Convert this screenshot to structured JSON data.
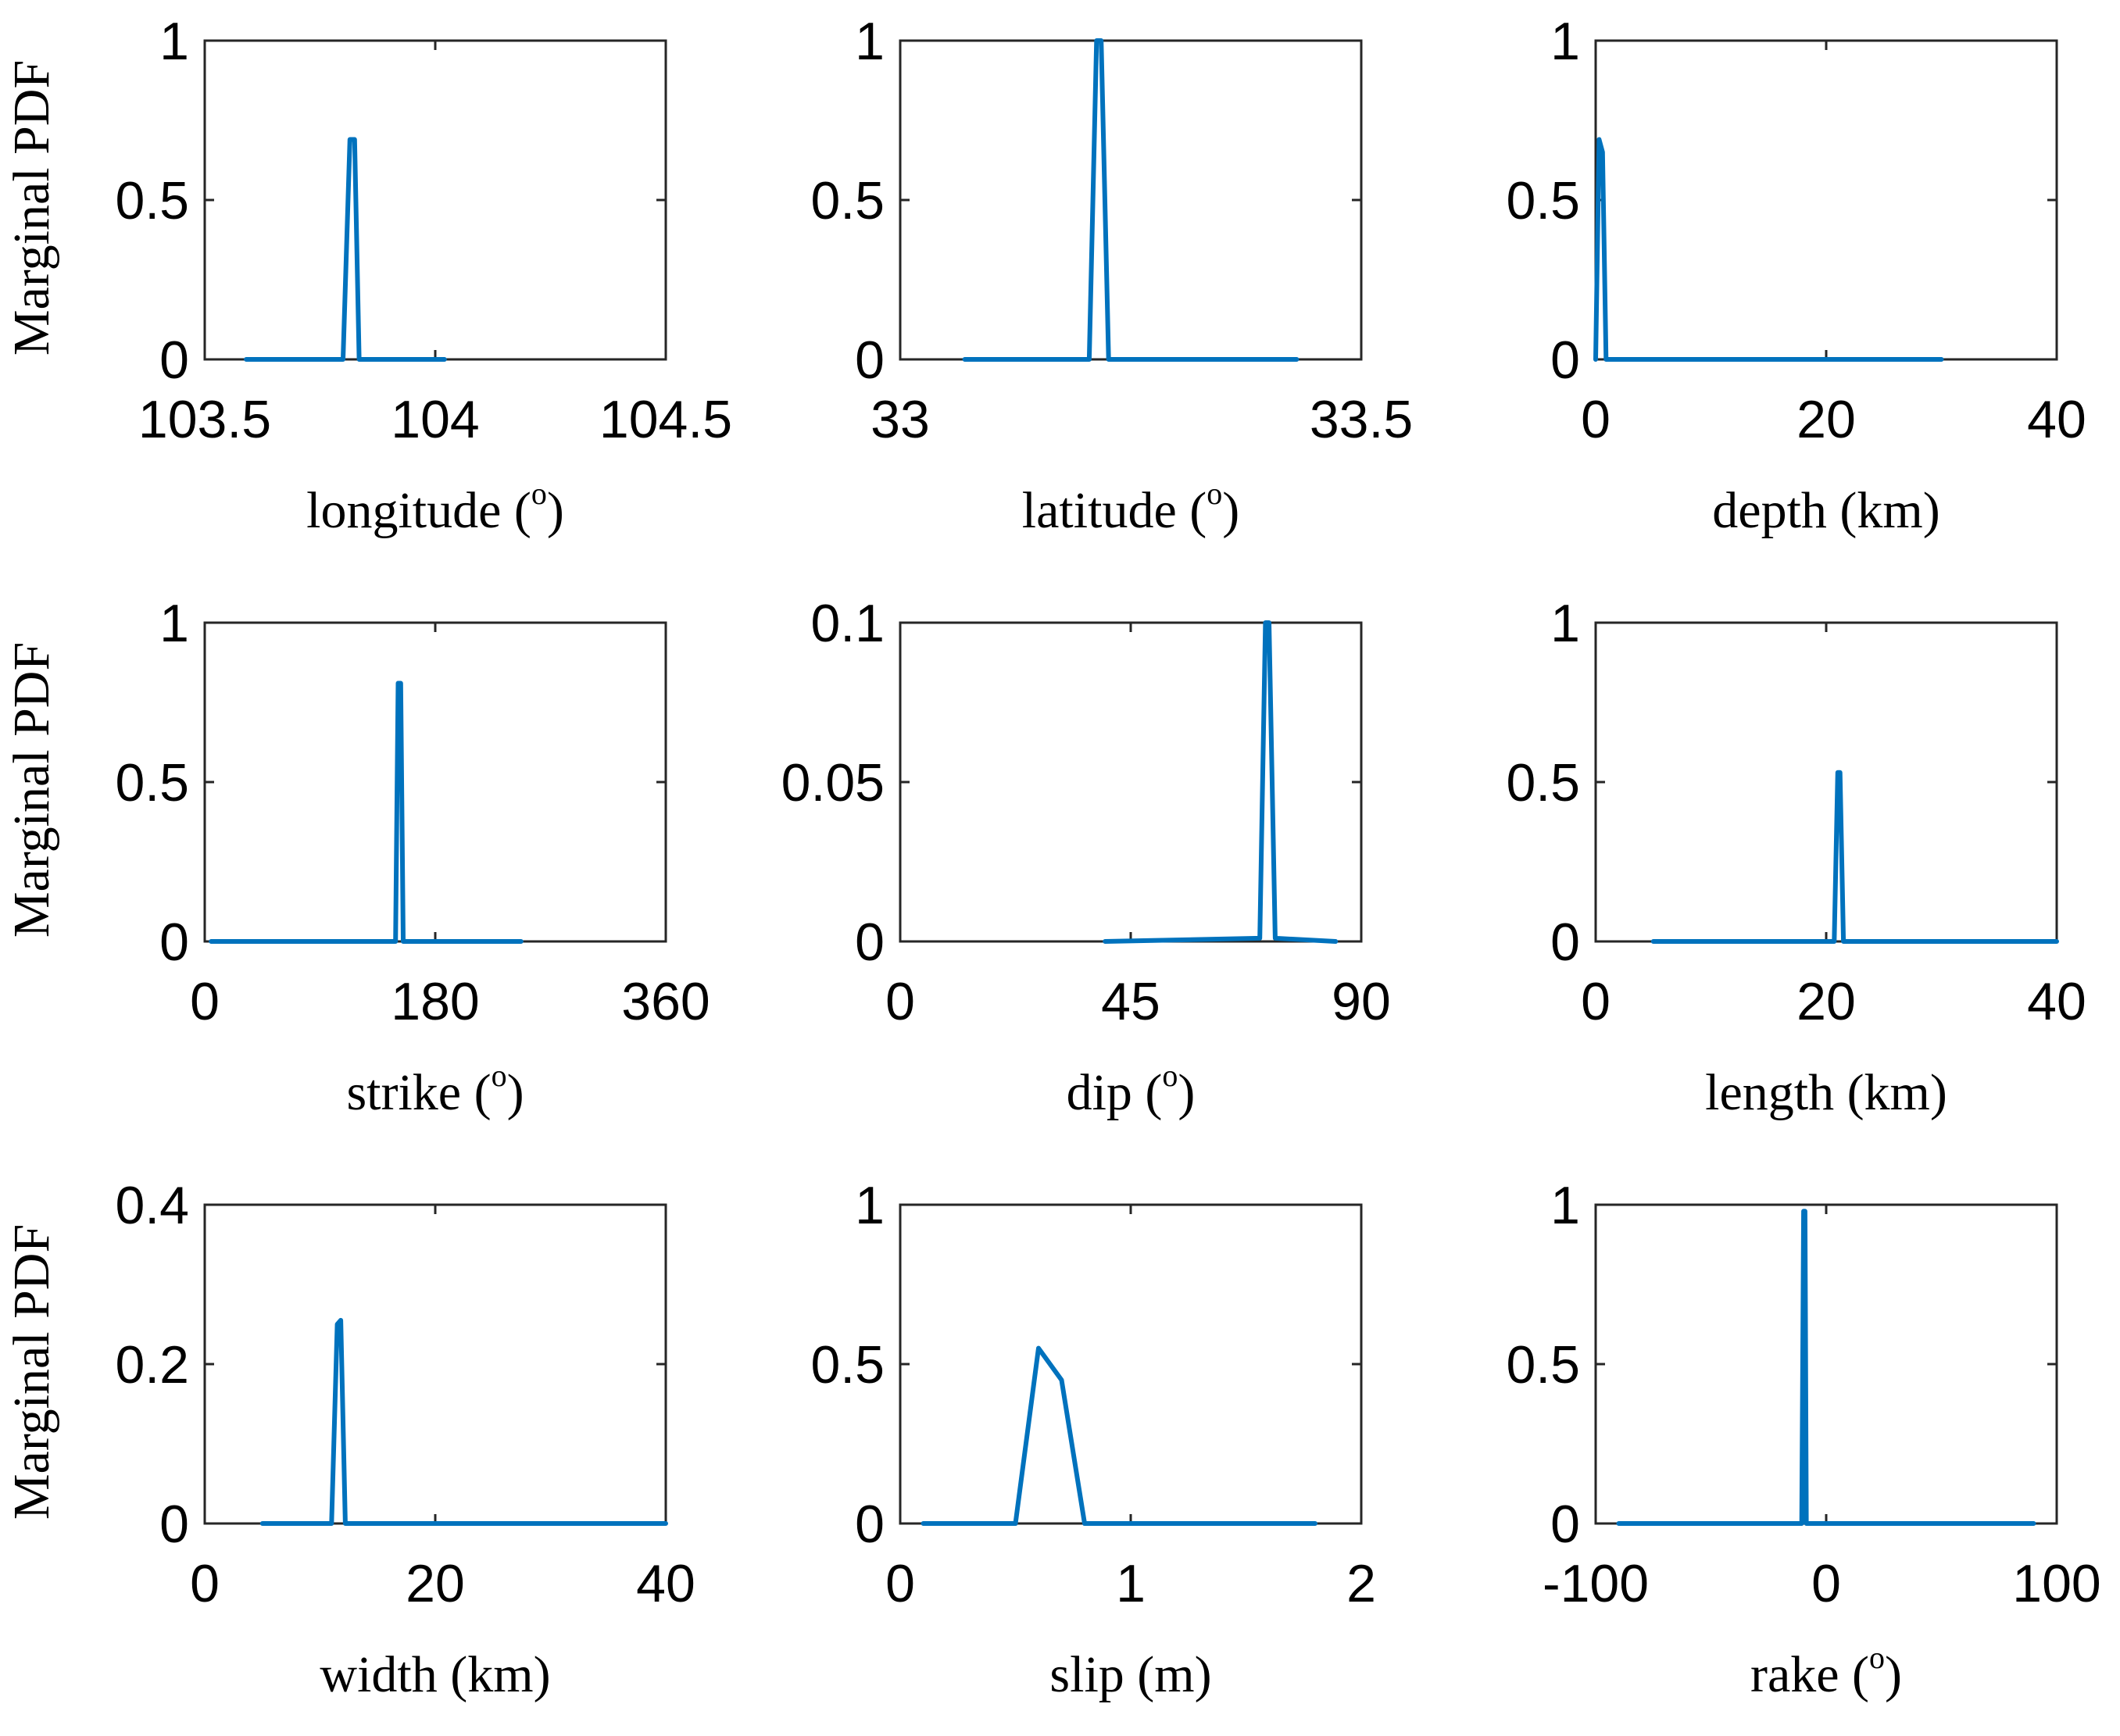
{
  "figure": {
    "ylabel": "Marginal PDF",
    "line_color": "#0072BD"
  },
  "chart_data": [
    {
      "type": "line",
      "xlabel": "longitude (",
      "xlabel_sup": "o",
      "xlabel_end": ")",
      "xlim": [
        103.5,
        104.5
      ],
      "ylim": [
        0,
        1
      ],
      "xticks": [
        103.5,
        104,
        104.5
      ],
      "xtick_labels": [
        "103.5",
        "104",
        "104.5"
      ],
      "yticks": [
        0,
        0.5,
        1
      ],
      "ytick_labels": [
        "0",
        "0.5",
        "1"
      ],
      "x": [
        103.59,
        103.8,
        103.815,
        103.825,
        103.835,
        104.02
      ],
      "y": [
        0,
        0,
        0.69,
        0.69,
        0,
        0
      ]
    },
    {
      "type": "line",
      "xlabel": "latitude (",
      "xlabel_sup": "o",
      "xlabel_end": ")",
      "xlim": [
        33,
        33.5
      ],
      "ylim": [
        0,
        1
      ],
      "xticks": [
        33,
        33.5
      ],
      "xtick_labels": [
        "33",
        "33.5"
      ],
      "yticks": [
        0,
        0.5,
        1
      ],
      "ytick_labels": [
        "0",
        "0.5",
        "1"
      ],
      "x": [
        33.07,
        33.205,
        33.213,
        33.218,
        33.226,
        33.43
      ],
      "y": [
        0,
        0,
        1.0,
        1.0,
        0,
        0
      ]
    },
    {
      "type": "line",
      "xlabel": "depth (km)",
      "xlabel_sup": "",
      "xlabel_end": "",
      "xlim": [
        0,
        40
      ],
      "ylim": [
        0,
        1
      ],
      "xticks": [
        0,
        20,
        40
      ],
      "xtick_labels": [
        "0",
        "20",
        "40"
      ],
      "yticks": [
        0,
        0.5,
        1
      ],
      "ytick_labels": [
        "0",
        "0.5",
        "1"
      ],
      "x": [
        0,
        0.3,
        0.6,
        0.9,
        30
      ],
      "y": [
        0,
        0.69,
        0.65,
        0,
        0
      ]
    },
    {
      "type": "line",
      "xlabel": "strike (",
      "xlabel_sup": "o",
      "xlabel_end": ")",
      "xlim": [
        0,
        360
      ],
      "ylim": [
        0,
        1
      ],
      "xticks": [
        0,
        180,
        360
      ],
      "xtick_labels": [
        "0",
        "180",
        "360"
      ],
      "yticks": [
        0,
        0.5,
        1
      ],
      "ytick_labels": [
        "0",
        "0.5",
        "1"
      ],
      "x": [
        5,
        149,
        151,
        153,
        155,
        247
      ],
      "y": [
        0,
        0,
        0.81,
        0.81,
        0,
        0
      ]
    },
    {
      "type": "line",
      "xlabel": "dip (",
      "xlabel_sup": "o",
      "xlabel_end": ")",
      "xlim": [
        0,
        90
      ],
      "ylim": [
        0,
        0.1
      ],
      "xticks": [
        0,
        45,
        90
      ],
      "xtick_labels": [
        "0",
        "45",
        "90"
      ],
      "yticks": [
        0,
        0.05,
        0.1
      ],
      "ytick_labels": [
        "0",
        "0.05",
        "0.1"
      ],
      "x": [
        40,
        70.2,
        71.3,
        72.0,
        73.2,
        85
      ],
      "y": [
        0,
        0.001,
        0.1,
        0.1,
        0.001,
        0
      ]
    },
    {
      "type": "line",
      "xlabel": "length (km)",
      "xlabel_sup": "",
      "xlabel_end": "",
      "xlim": [
        0,
        40
      ],
      "ylim": [
        0,
        1
      ],
      "xticks": [
        0,
        20,
        40
      ],
      "xtick_labels": [
        "0",
        "20",
        "40"
      ],
      "yticks": [
        0,
        0.5,
        1
      ],
      "ytick_labels": [
        "0",
        "0.5",
        "1"
      ],
      "x": [
        5,
        20.7,
        21.0,
        21.2,
        21.5,
        40
      ],
      "y": [
        0,
        0,
        0.53,
        0.53,
        0,
        0
      ]
    },
    {
      "type": "line",
      "xlabel": "width (km)",
      "xlabel_sup": "",
      "xlabel_end": "",
      "xlim": [
        0,
        40
      ],
      "ylim": [
        0,
        0.4
      ],
      "xticks": [
        0,
        20,
        40
      ],
      "xtick_labels": [
        "0",
        "20",
        "40"
      ],
      "yticks": [
        0,
        0.2,
        0.4
      ],
      "ytick_labels": [
        "0",
        "0.2",
        "0.4"
      ],
      "x": [
        5,
        11.0,
        11.5,
        11.8,
        12.2,
        40
      ],
      "y": [
        0,
        0,
        0.25,
        0.255,
        0,
        0
      ]
    },
    {
      "type": "line",
      "xlabel": "slip (m)",
      "xlabel_sup": "",
      "xlabel_end": "",
      "xlim": [
        0,
        2
      ],
      "ylim": [
        0,
        1
      ],
      "xticks": [
        0,
        1,
        2
      ],
      "xtick_labels": [
        "0",
        "1",
        "2"
      ],
      "yticks": [
        0,
        0.5,
        1
      ],
      "ytick_labels": [
        "0",
        "0.5",
        "1"
      ],
      "x": [
        0.1,
        0.5,
        0.6,
        0.7,
        0.8,
        1.8
      ],
      "y": [
        0,
        0,
        0.55,
        0.45,
        0,
        0
      ]
    },
    {
      "type": "line",
      "xlabel": "rake (",
      "xlabel_sup": "o",
      "xlabel_end": ")",
      "xlim": [
        -100,
        100
      ],
      "ylim": [
        0,
        1
      ],
      "xticks": [
        -100,
        0,
        100
      ],
      "xtick_labels": [
        "-100",
        "0",
        "100"
      ],
      "yticks": [
        0,
        0.5,
        1
      ],
      "ytick_labels": [
        "0",
        "0.5",
        "1"
      ],
      "x": [
        -90,
        -10.6,
        -9.8,
        -9.2,
        -8.6,
        90
      ],
      "y": [
        0,
        0,
        0.98,
        0.98,
        0,
        0
      ]
    }
  ]
}
